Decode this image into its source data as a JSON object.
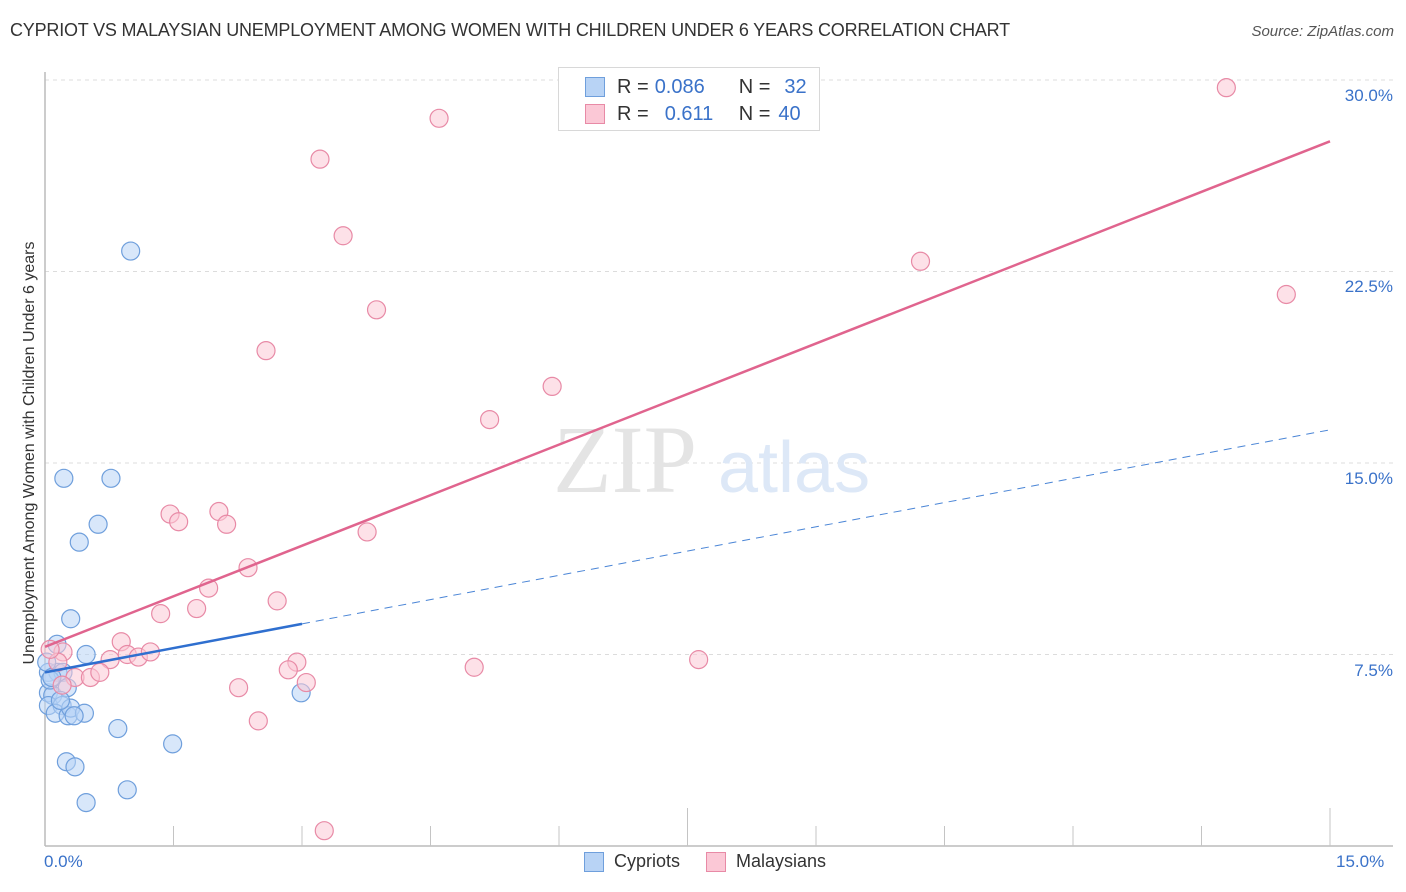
{
  "header": {
    "title": "CYPRIOT VS MALAYSIAN UNEMPLOYMENT AMONG WOMEN WITH CHILDREN UNDER 6 YEARS CORRELATION CHART",
    "source": "Source: ZipAtlas.com"
  },
  "legend": {
    "rows": [
      {
        "r_label": "R =",
        "r_value": "0.086",
        "n_label": "N =",
        "n_value": "32",
        "color": "#b8d3f5",
        "border": "#6f9fdc"
      },
      {
        "r_label": "R =",
        "r_value": "0.611",
        "n_label": "N =",
        "n_value": "40",
        "color": "#fbc8d6",
        "border": "#e88aa6"
      }
    ],
    "bottom": [
      {
        "label": "Cypriots",
        "color": "#b8d3f5",
        "border": "#6f9fdc"
      },
      {
        "label": "Malaysians",
        "color": "#fbc8d6",
        "border": "#e88aa6"
      }
    ]
  },
  "watermark": {
    "zip": "ZIP",
    "atlas": "atlas"
  },
  "axes": {
    "ylabel": "Unemployment Among Women with Children Under 6 years",
    "y_ticks": [
      "30.0%",
      "22.5%",
      "15.0%",
      "7.5%"
    ],
    "x_ticks": [
      "0.0%",
      "15.0%"
    ]
  },
  "chart_data": {
    "type": "scatter",
    "title": "CYPRIOT VS MALAYSIAN UNEMPLOYMENT AMONG WOMEN WITH CHILDREN UNDER 6 YEARS CORRELATION CHART",
    "xlabel": "",
    "ylabel": "Unemployment Among Women with Children Under 6 years",
    "xlim": [
      0,
      15
    ],
    "ylim": [
      0,
      30
    ],
    "y_ticks": [
      7.5,
      15.0,
      22.5,
      30.0
    ],
    "x_ticks_labeled": [
      0.0,
      15.0
    ],
    "grid": "horizontal dashed",
    "legend_position": "top-center and bottom",
    "series": [
      {
        "name": "Cypriots",
        "color": "#6f9fdc",
        "R": 0.086,
        "N": 32,
        "trend": {
          "x": [
            0.0,
            3.0
          ],
          "y": [
            6.8,
            8.7
          ],
          "extended_dashed_to": [
            15.0,
            16.3
          ]
        },
        "points": [
          [
            1.0,
            23.3
          ],
          [
            0.22,
            14.4
          ],
          [
            0.77,
            14.4
          ],
          [
            0.62,
            12.6
          ],
          [
            0.4,
            11.9
          ],
          [
            0.3,
            8.9
          ],
          [
            0.14,
            7.9
          ],
          [
            0.48,
            7.5
          ],
          [
            0.04,
            6.8
          ],
          [
            0.15,
            6.8
          ],
          [
            0.21,
            6.8
          ],
          [
            0.04,
            6.0
          ],
          [
            0.09,
            5.9
          ],
          [
            0.26,
            6.2
          ],
          [
            2.99,
            6.0
          ],
          [
            0.04,
            5.5
          ],
          [
            0.2,
            5.5
          ],
          [
            0.12,
            5.2
          ],
          [
            0.27,
            5.1
          ],
          [
            0.3,
            5.4
          ],
          [
            0.46,
            5.2
          ],
          [
            0.34,
            5.1
          ],
          [
            0.85,
            4.6
          ],
          [
            1.49,
            4.0
          ],
          [
            0.25,
            3.3
          ],
          [
            0.35,
            3.1
          ],
          [
            0.96,
            2.2
          ],
          [
            0.48,
            1.7
          ],
          [
            0.06,
            6.5
          ],
          [
            0.02,
            7.2
          ],
          [
            0.08,
            6.6
          ],
          [
            0.18,
            5.7
          ]
        ]
      },
      {
        "name": "Malaysians",
        "color": "#e88aa6",
        "R": 0.611,
        "N": 40,
        "trend": {
          "x": [
            0.0,
            15.0
          ],
          "y": [
            7.8,
            27.6
          ]
        },
        "points": [
          [
            13.79,
            29.7
          ],
          [
            4.6,
            28.5
          ],
          [
            3.21,
            26.9
          ],
          [
            3.48,
            23.9
          ],
          [
            10.22,
            22.9
          ],
          [
            14.49,
            21.6
          ],
          [
            3.87,
            21.0
          ],
          [
            2.58,
            19.4
          ],
          [
            5.92,
            18.0
          ],
          [
            5.19,
            16.7
          ],
          [
            1.46,
            13.0
          ],
          [
            1.56,
            12.7
          ],
          [
            2.03,
            13.1
          ],
          [
            2.12,
            12.6
          ],
          [
            3.76,
            12.3
          ],
          [
            2.37,
            10.9
          ],
          [
            1.91,
            10.1
          ],
          [
            1.35,
            9.1
          ],
          [
            1.77,
            9.3
          ],
          [
            2.71,
            9.6
          ],
          [
            0.89,
            8.0
          ],
          [
            0.96,
            7.5
          ],
          [
            1.09,
            7.4
          ],
          [
            1.23,
            7.6
          ],
          [
            0.76,
            7.3
          ],
          [
            2.94,
            7.2
          ],
          [
            2.84,
            6.9
          ],
          [
            3.05,
            6.4
          ],
          [
            5.01,
            7.0
          ],
          [
            7.63,
            7.3
          ],
          [
            2.26,
            6.2
          ],
          [
            2.49,
            4.9
          ],
          [
            3.26,
            0.6
          ],
          [
            0.21,
            7.6
          ],
          [
            0.15,
            7.2
          ],
          [
            0.35,
            6.6
          ],
          [
            0.53,
            6.6
          ],
          [
            0.2,
            6.3
          ],
          [
            0.06,
            7.7
          ],
          [
            0.64,
            6.8
          ]
        ]
      }
    ]
  }
}
